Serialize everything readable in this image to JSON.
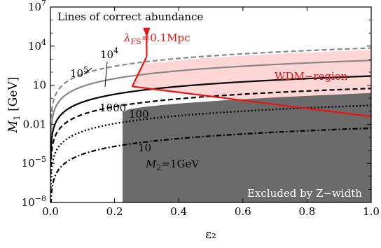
{
  "chart_data": {
    "type": "line",
    "title": "Lines of correct abundance",
    "xlabel": "ε₂",
    "ylabel_main": "M",
    "ylabel_sub": "1",
    "ylabel_unit": " [GeV]",
    "xlim": [
      0,
      1
    ],
    "ylim_log10": [
      -8,
      7
    ],
    "x_ticks": [
      0.0,
      0.2,
      0.4,
      0.6,
      0.8,
      1.0
    ],
    "x_tick_labels": [
      "0.0",
      "0.2",
      "0.4",
      "0.6",
      "0.8",
      "1.0"
    ],
    "y_ticks_log10": [
      -8,
      -5,
      -2,
      1,
      4,
      7
    ],
    "y_tick_labels": [
      {
        "pre": "10",
        "sup": "−8"
      },
      {
        "pre": "10",
        "sup": "−5"
      },
      {
        "pre": "",
        "sup": "",
        "plain": "0.01"
      },
      {
        "pre": "",
        "sup": "",
        "plain": "10"
      },
      {
        "pre": "10",
        "sup": "4"
      },
      {
        "pre": "10",
        "sup": "7"
      }
    ],
    "series": [
      {
        "label_pre": "10",
        "label_sup": "5",
        "k_log10": 3.85,
        "style": "dashed",
        "color": "#888888",
        "width": 2.2
      },
      {
        "label_pre": "10",
        "label_sup": "4",
        "k_log10": 2.9,
        "style": "solid",
        "color": "#888888",
        "width": 2.2
      },
      {
        "label_pre": "1000",
        "label_sup": "",
        "k_log10": 1.7,
        "style": "solid",
        "color": "#000000",
        "width": 2.2
      },
      {
        "label_pre": "100",
        "label_sup": "",
        "k_log10": 0.75,
        "style": "dashed",
        "color": "#000000",
        "width": 2.2
      },
      {
        "label_pre": "10",
        "label_sup": "",
        "k_log10": -0.55,
        "style": "dotted",
        "color": "#000000",
        "width": 2.4
      },
      {
        "label_pre": "M",
        "label_sub": "2",
        "label_post": "=1GeV",
        "k_log10": -2.3,
        "style": "dashdot",
        "color": "#000000",
        "width": 2.2
      }
    ],
    "excluded_region": {
      "label": "Excluded by Z−width",
      "x_start": 0.225,
      "y_left_log10": -1.05,
      "y_right_log10": 0.4,
      "color": "#6b6b6b"
    },
    "wdm_region": {
      "label": "WDM−region",
      "corner_x": 0.255,
      "corner_y_log10": 0.9,
      "right_y_log10": -1.4,
      "fill": "#ffd6d6",
      "line_color": "#ee1111"
    },
    "free_streaming": {
      "label_lambda": "λ",
      "label_sub": "FS",
      "label_post": "=0.1Mpc",
      "arrow_x": 0.3,
      "arrow_top_log10": 5.3,
      "arrow_bottom_log10": 3.2,
      "color": "#ee1111"
    }
  }
}
